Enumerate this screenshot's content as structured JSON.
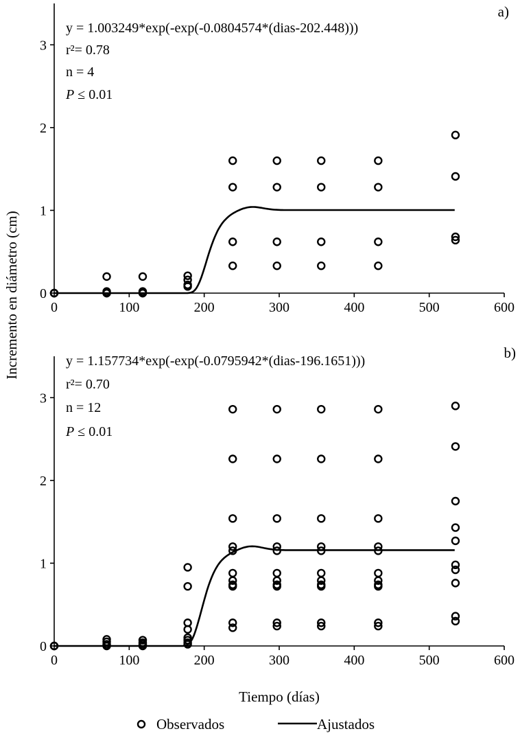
{
  "chart_data": [
    {
      "type": "scatter",
      "panel_label": "a)",
      "annotations": {
        "equation": "y = 1.003249*exp(-exp(-0.0804574*(dias-202.448)))",
        "r2": "r²= 0.78",
        "n": "n = 4",
        "p_symbol": "P",
        "p_rest": " ≤ 0.01"
      },
      "xlim": [
        0,
        600
      ],
      "ylim": [
        0,
        3.5
      ],
      "xticks": [
        "0",
        "100",
        "200",
        "300",
        "400",
        "500",
        "600"
      ],
      "yticks": [
        "0",
        "1",
        "2",
        "3"
      ],
      "fit": {
        "a": 1.003249,
        "b": 0.0804574,
        "c": 202.448,
        "x_range": [
          0,
          535
        ]
      },
      "series": [
        {
          "name": "Observados",
          "points": [
            [
              0,
              0
            ],
            [
              0,
              0
            ],
            [
              0,
              0
            ],
            [
              0,
              0
            ],
            [
              70,
              0.2
            ],
            [
              70,
              0.02
            ],
            [
              70,
              0
            ],
            [
              70,
              0
            ],
            [
              118,
              0.2
            ],
            [
              118,
              0.02
            ],
            [
              118,
              0
            ],
            [
              118,
              0
            ],
            [
              178,
              0.21
            ],
            [
              178,
              0.16
            ],
            [
              178,
              0.1
            ],
            [
              178,
              0.08
            ],
            [
              238,
              1.6
            ],
            [
              238,
              1.28
            ],
            [
              238,
              0.62
            ],
            [
              238,
              0.33
            ],
            [
              297,
              1.6
            ],
            [
              297,
              1.28
            ],
            [
              297,
              0.62
            ],
            [
              297,
              0.33
            ],
            [
              356,
              1.6
            ],
            [
              356,
              1.28
            ],
            [
              356,
              0.62
            ],
            [
              356,
              0.33
            ],
            [
              432,
              1.6
            ],
            [
              432,
              1.28
            ],
            [
              432,
              0.62
            ],
            [
              432,
              0.33
            ],
            [
              535,
              1.91
            ],
            [
              535,
              1.41
            ],
            [
              535,
              0.68
            ],
            [
              535,
              0.64
            ]
          ]
        }
      ]
    },
    {
      "type": "scatter",
      "panel_label": "b)",
      "annotations": {
        "equation": "y = 1.157734*exp(-exp(-0.0795942*(dias-196.1651)))",
        "r2": "r²= 0.70",
        "n": "n = 12",
        "p_symbol": "P",
        "p_rest": " ≤ 0.01"
      },
      "xlim": [
        0,
        600
      ],
      "ylim": [
        0,
        3.5
      ],
      "xticks": [
        "0",
        "100",
        "200",
        "300",
        "400",
        "500",
        "600"
      ],
      "yticks": [
        "0",
        "1",
        "2",
        "3"
      ],
      "fit": {
        "a": 1.157734,
        "b": 0.0795942,
        "c": 196.1651,
        "x_range": [
          0,
          535
        ]
      },
      "series": [
        {
          "name": "Observados",
          "points": [
            [
              0,
              0
            ],
            [
              0,
              0
            ],
            [
              0,
              0
            ],
            [
              70,
              0.08
            ],
            [
              70,
              0.05
            ],
            [
              70,
              0.02
            ],
            [
              70,
              0
            ],
            [
              118,
              0.07
            ],
            [
              118,
              0.04
            ],
            [
              118,
              0.02
            ],
            [
              118,
              0
            ],
            [
              178,
              0.95
            ],
            [
              178,
              0.72
            ],
            [
              178,
              0.28
            ],
            [
              178,
              0.2
            ],
            [
              178,
              0.1
            ],
            [
              178,
              0.07
            ],
            [
              178,
              0.04
            ],
            [
              178,
              0.02
            ],
            [
              238,
              2.86
            ],
            [
              238,
              2.26
            ],
            [
              238,
              1.54
            ],
            [
              238,
              1.2
            ],
            [
              238,
              1.15
            ],
            [
              238,
              0.88
            ],
            [
              238,
              0.79
            ],
            [
              238,
              0.74
            ],
            [
              238,
              0.72
            ],
            [
              238,
              0.28
            ],
            [
              238,
              0.22
            ],
            [
              297,
              2.86
            ],
            [
              297,
              2.26
            ],
            [
              297,
              1.54
            ],
            [
              297,
              1.2
            ],
            [
              297,
              1.15
            ],
            [
              297,
              0.88
            ],
            [
              297,
              0.79
            ],
            [
              297,
              0.74
            ],
            [
              297,
              0.72
            ],
            [
              297,
              0.28
            ],
            [
              297,
              0.24
            ],
            [
              356,
              2.86
            ],
            [
              356,
              2.26
            ],
            [
              356,
              1.54
            ],
            [
              356,
              1.2
            ],
            [
              356,
              1.15
            ],
            [
              356,
              0.88
            ],
            [
              356,
              0.79
            ],
            [
              356,
              0.74
            ],
            [
              356,
              0.72
            ],
            [
              356,
              0.28
            ],
            [
              356,
              0.24
            ],
            [
              432,
              2.86
            ],
            [
              432,
              2.26
            ],
            [
              432,
              1.54
            ],
            [
              432,
              1.2
            ],
            [
              432,
              1.15
            ],
            [
              432,
              0.88
            ],
            [
              432,
              0.79
            ],
            [
              432,
              0.74
            ],
            [
              432,
              0.72
            ],
            [
              432,
              0.28
            ],
            [
              432,
              0.24
            ],
            [
              535,
              2.9
            ],
            [
              535,
              2.41
            ],
            [
              535,
              1.75
            ],
            [
              535,
              1.43
            ],
            [
              535,
              1.27
            ],
            [
              535,
              0.98
            ],
            [
              535,
              0.92
            ],
            [
              535,
              0.76
            ],
            [
              535,
              0.36
            ],
            [
              535,
              0.3
            ]
          ]
        }
      ]
    }
  ],
  "xlabel": "Tiempo  (días)",
  "ylabel": "Incremento  en diámetro  (cm)",
  "legend": {
    "observed": "Observados",
    "fitted": "Ajustados"
  }
}
